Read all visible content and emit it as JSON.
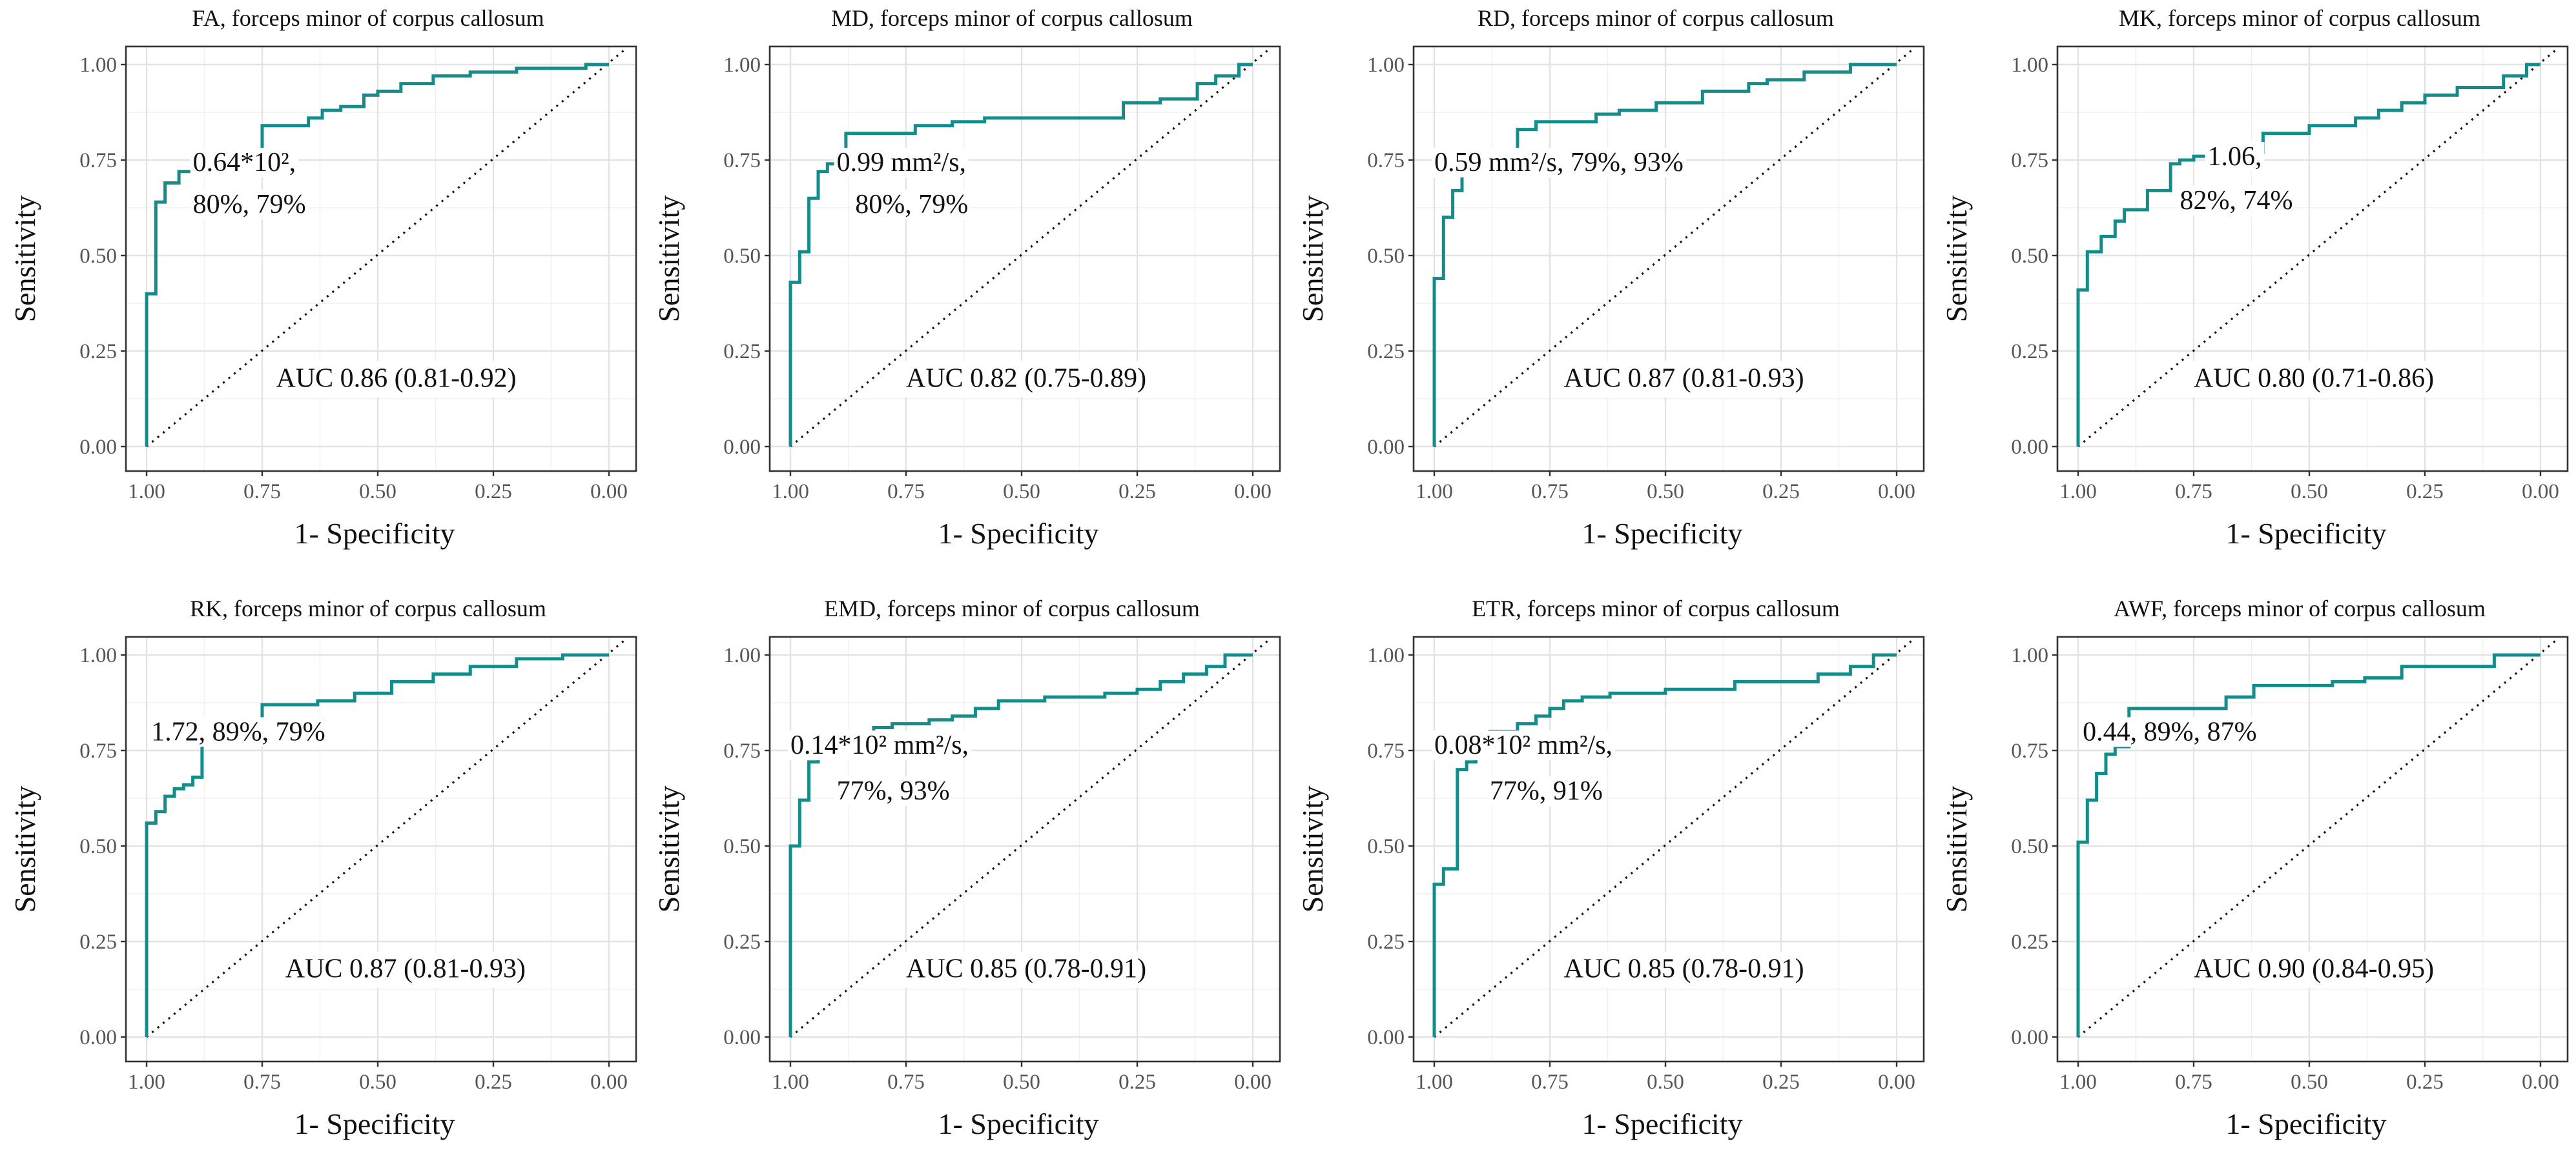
{
  "chart_data": [
    {
      "type": "line",
      "title": "FA, forceps minor of corpus callosum",
      "xlabel": "1- Specificity",
      "ylabel": "Sensitivity",
      "xlim": [
        1.0,
        0.0
      ],
      "ylim": [
        0.0,
        1.0
      ],
      "xticks": [
        "1.00",
        "0.75",
        "0.50",
        "0.25",
        "0.00"
      ],
      "yticks": [
        "0.00",
        "0.25",
        "0.50",
        "0.75",
        "1.00"
      ],
      "grid": true,
      "annotation": [
        "0.64*10²,",
        "80%, 79%"
      ],
      "auc_label": "AUC 0.86 (0.81-0.92)",
      "series": [
        {
          "name": "ROC",
          "x": [
            1.0,
            1.0,
            0.98,
            0.98,
            0.96,
            0.96,
            0.93,
            0.93,
            0.88,
            0.88,
            0.75,
            0.75,
            0.65,
            0.65,
            0.62,
            0.62,
            0.58,
            0.58,
            0.53,
            0.53,
            0.5,
            0.5,
            0.45,
            0.45,
            0.38,
            0.38,
            0.3,
            0.3,
            0.2,
            0.2,
            0.05,
            0.05,
            0.0
          ],
          "y": [
            0.0,
            0.4,
            0.4,
            0.64,
            0.64,
            0.69,
            0.69,
            0.72,
            0.72,
            0.74,
            0.74,
            0.84,
            0.84,
            0.86,
            0.86,
            0.88,
            0.88,
            0.89,
            0.89,
            0.92,
            0.92,
            0.93,
            0.93,
            0.95,
            0.95,
            0.97,
            0.97,
            0.98,
            0.98,
            0.99,
            0.99,
            1.0,
            1.0
          ]
        }
      ],
      "ann_pos": [
        0.9,
        0.745,
        0.9,
        0.635
      ],
      "auc_pos": [
        0.72,
        0.18
      ]
    },
    {
      "type": "line",
      "title": "MD, forceps minor of corpus callosum",
      "xlabel": "1- Specificity",
      "ylabel": "Sensitivity",
      "xlim": [
        1.0,
        0.0
      ],
      "ylim": [
        0.0,
        1.0
      ],
      "xticks": [
        "1.00",
        "0.75",
        "0.50",
        "0.25",
        "0.00"
      ],
      "yticks": [
        "0.00",
        "0.25",
        "0.50",
        "0.75",
        "1.00"
      ],
      "grid": true,
      "annotation": [
        "0.99 mm²/s,",
        "80%, 79%"
      ],
      "auc_label": "AUC 0.82 (0.75-0.89)",
      "series": [
        {
          "name": "ROC",
          "x": [
            1.0,
            1.0,
            0.98,
            0.98,
            0.96,
            0.96,
            0.94,
            0.94,
            0.92,
            0.92,
            0.88,
            0.88,
            0.73,
            0.73,
            0.65,
            0.65,
            0.58,
            0.58,
            0.28,
            0.28,
            0.2,
            0.2,
            0.12,
            0.12,
            0.08,
            0.08,
            0.03,
            0.03,
            0.0
          ],
          "y": [
            0.0,
            0.43,
            0.43,
            0.51,
            0.51,
            0.65,
            0.65,
            0.72,
            0.72,
            0.74,
            0.74,
            0.82,
            0.82,
            0.84,
            0.84,
            0.85,
            0.85,
            0.86,
            0.86,
            0.9,
            0.9,
            0.91,
            0.91,
            0.95,
            0.95,
            0.97,
            0.97,
            1.0,
            1.0
          ]
        }
      ],
      "ann_pos": [
        0.9,
        0.745,
        0.86,
        0.635
      ],
      "auc_pos": [
        0.75,
        0.18
      ]
    },
    {
      "type": "line",
      "title": "RD, forceps minor of corpus callosum",
      "xlabel": "1- Specificity",
      "ylabel": "Sensitivity",
      "xlim": [
        1.0,
        0.0
      ],
      "ylim": [
        0.0,
        1.0
      ],
      "xticks": [
        "1.00",
        "0.75",
        "0.50",
        "0.25",
        "0.00"
      ],
      "yticks": [
        "0.00",
        "0.25",
        "0.50",
        "0.75",
        "1.00"
      ],
      "grid": true,
      "annotation": [
        "0.59 mm²/s, 79%, 93%"
      ],
      "auc_label": "AUC 0.87 (0.81-0.93)",
      "series": [
        {
          "name": "ROC",
          "x": [
            1.0,
            1.0,
            0.98,
            0.98,
            0.96,
            0.96,
            0.94,
            0.94,
            0.82,
            0.82,
            0.78,
            0.78,
            0.65,
            0.65,
            0.6,
            0.6,
            0.52,
            0.52,
            0.42,
            0.42,
            0.32,
            0.32,
            0.28,
            0.28,
            0.2,
            0.2,
            0.1,
            0.1,
            0.0
          ],
          "y": [
            0.0,
            0.44,
            0.44,
            0.6,
            0.6,
            0.67,
            0.67,
            0.74,
            0.74,
            0.83,
            0.83,
            0.85,
            0.85,
            0.87,
            0.87,
            0.88,
            0.88,
            0.9,
            0.9,
            0.93,
            0.93,
            0.95,
            0.95,
            0.96,
            0.96,
            0.98,
            0.98,
            1.0,
            1.0
          ]
        }
      ],
      "ann_pos": [
        1.0,
        0.745
      ],
      "auc_pos": [
        0.72,
        0.18
      ]
    },
    {
      "type": "line",
      "title": "MK, forceps minor of corpus callosum",
      "xlabel": "1- Specificity",
      "ylabel": "Sensitivity",
      "xlim": [
        1.0,
        0.0
      ],
      "ylim": [
        0.0,
        1.0
      ],
      "xticks": [
        "1.00",
        "0.75",
        "0.50",
        "0.25",
        "0.00"
      ],
      "yticks": [
        "0.00",
        "0.25",
        "0.50",
        "0.75",
        "1.00"
      ],
      "grid": true,
      "annotation": [
        "1.06,",
        "82%, 74%"
      ],
      "auc_label": "AUC 0.80 (0.71-0.86)",
      "series": [
        {
          "name": "ROC",
          "x": [
            1.0,
            1.0,
            0.98,
            0.98,
            0.95,
            0.95,
            0.92,
            0.92,
            0.9,
            0.9,
            0.85,
            0.85,
            0.8,
            0.8,
            0.78,
            0.78,
            0.75,
            0.75,
            0.72,
            0.72,
            0.6,
            0.6,
            0.5,
            0.5,
            0.4,
            0.4,
            0.35,
            0.35,
            0.3,
            0.3,
            0.25,
            0.25,
            0.18,
            0.18,
            0.08,
            0.08,
            0.03,
            0.03,
            0.0
          ],
          "y": [
            0.0,
            0.41,
            0.41,
            0.51,
            0.51,
            0.55,
            0.55,
            0.59,
            0.59,
            0.62,
            0.62,
            0.67,
            0.67,
            0.74,
            0.74,
            0.75,
            0.75,
            0.76,
            0.76,
            0.77,
            0.77,
            0.82,
            0.82,
            0.84,
            0.84,
            0.86,
            0.86,
            0.88,
            0.88,
            0.9,
            0.9,
            0.92,
            0.92,
            0.94,
            0.94,
            0.97,
            0.97,
            1.0,
            1.0
          ]
        }
      ],
      "ann_pos": [
        0.72,
        0.76,
        0.78,
        0.645
      ],
      "auc_pos": [
        0.75,
        0.18
      ]
    },
    {
      "type": "line",
      "title": "RK, forceps minor of corpus callosum",
      "xlabel": "1- Specificity",
      "ylabel": "Sensitivity",
      "xlim": [
        1.0,
        0.0
      ],
      "ylim": [
        0.0,
        1.0
      ],
      "xticks": [
        "1.00",
        "0.75",
        "0.50",
        "0.25",
        "0.00"
      ],
      "yticks": [
        "0.00",
        "0.25",
        "0.50",
        "0.75",
        "1.00"
      ],
      "grid": true,
      "annotation": [
        "1.72, 89%, 79%"
      ],
      "auc_label": "AUC 0.87 (0.81-0.93)",
      "series": [
        {
          "name": "ROC",
          "x": [
            1.0,
            1.0,
            0.98,
            0.98,
            0.96,
            0.96,
            0.94,
            0.94,
            0.92,
            0.92,
            0.9,
            0.9,
            0.88,
            0.88,
            0.75,
            0.75,
            0.63,
            0.63,
            0.55,
            0.55,
            0.47,
            0.47,
            0.38,
            0.38,
            0.3,
            0.3,
            0.2,
            0.2,
            0.1,
            0.1,
            0.0
          ],
          "y": [
            0.0,
            0.56,
            0.56,
            0.59,
            0.59,
            0.63,
            0.63,
            0.65,
            0.65,
            0.66,
            0.66,
            0.68,
            0.68,
            0.79,
            0.79,
            0.87,
            0.87,
            0.88,
            0.88,
            0.9,
            0.9,
            0.93,
            0.93,
            0.95,
            0.95,
            0.97,
            0.97,
            0.99,
            0.99,
            1.0,
            1.0
          ]
        }
      ],
      "ann_pos": [
        0.99,
        0.8
      ],
      "auc_pos": [
        0.7,
        0.18
      ]
    },
    {
      "type": "line",
      "title": "EMD, forceps minor of corpus callosum",
      "xlabel": "1- Specificity",
      "ylabel": "Sensitivity",
      "xlim": [
        1.0,
        0.0
      ],
      "ylim": [
        0.0,
        1.0
      ],
      "xticks": [
        "1.00",
        "0.75",
        "0.50",
        "0.25",
        "0.00"
      ],
      "yticks": [
        "0.00",
        "0.25",
        "0.50",
        "0.75",
        "1.00"
      ],
      "grid": true,
      "annotation": [
        "0.14*10² mm²/s,",
        "77%, 93%"
      ],
      "auc_label": "AUC 0.85 (0.78-0.91)",
      "series": [
        {
          "name": "ROC",
          "x": [
            1.0,
            1.0,
            0.98,
            0.98,
            0.96,
            0.96,
            0.94,
            0.94,
            0.82,
            0.82,
            0.78,
            0.78,
            0.7,
            0.7,
            0.65,
            0.65,
            0.6,
            0.6,
            0.55,
            0.55,
            0.45,
            0.45,
            0.32,
            0.32,
            0.25,
            0.25,
            0.2,
            0.2,
            0.15,
            0.15,
            0.1,
            0.1,
            0.06,
            0.06,
            0.0
          ],
          "y": [
            0.0,
            0.5,
            0.5,
            0.62,
            0.62,
            0.72,
            0.72,
            0.74,
            0.74,
            0.81,
            0.81,
            0.82,
            0.82,
            0.83,
            0.83,
            0.84,
            0.84,
            0.86,
            0.86,
            0.88,
            0.88,
            0.89,
            0.89,
            0.9,
            0.9,
            0.91,
            0.91,
            0.93,
            0.93,
            0.95,
            0.95,
            0.97,
            0.97,
            1.0,
            1.0
          ]
        }
      ],
      "ann_pos": [
        1.0,
        0.765,
        0.9,
        0.645
      ],
      "auc_pos": [
        0.75,
        0.18
      ]
    },
    {
      "type": "line",
      "title": "ETR, forceps minor of corpus callosum",
      "xlabel": "1- Specificity",
      "ylabel": "Sensitivity",
      "xlim": [
        1.0,
        0.0
      ],
      "ylim": [
        0.0,
        1.0
      ],
      "xticks": [
        "1.00",
        "0.75",
        "0.50",
        "0.25",
        "0.00"
      ],
      "yticks": [
        "0.00",
        "0.25",
        "0.50",
        "0.75",
        "1.00"
      ],
      "grid": true,
      "annotation": [
        "0.08*10² mm²/s,",
        "77%, 91%"
      ],
      "auc_label": "AUC 0.85 (0.78-0.91)",
      "series": [
        {
          "name": "ROC",
          "x": [
            1.0,
            1.0,
            0.98,
            0.98,
            0.95,
            0.95,
            0.93,
            0.93,
            0.91,
            0.91,
            0.88,
            0.88,
            0.82,
            0.82,
            0.78,
            0.78,
            0.75,
            0.75,
            0.72,
            0.72,
            0.68,
            0.68,
            0.62,
            0.62,
            0.5,
            0.5,
            0.35,
            0.35,
            0.17,
            0.17,
            0.1,
            0.1,
            0.05,
            0.05,
            0.0
          ],
          "y": [
            0.0,
            0.4,
            0.4,
            0.44,
            0.44,
            0.7,
            0.7,
            0.72,
            0.72,
            0.74,
            0.74,
            0.8,
            0.8,
            0.82,
            0.82,
            0.84,
            0.84,
            0.86,
            0.86,
            0.88,
            0.88,
            0.89,
            0.89,
            0.9,
            0.9,
            0.91,
            0.91,
            0.93,
            0.93,
            0.95,
            0.95,
            0.97,
            0.97,
            1.0,
            1.0
          ]
        }
      ],
      "ann_pos": [
        1.0,
        0.765,
        0.88,
        0.645
      ],
      "auc_pos": [
        0.72,
        0.18
      ]
    },
    {
      "type": "line",
      "title": "AWF, forceps minor of corpus callosum",
      "xlabel": "1- Specificity",
      "ylabel": "Sensitivity",
      "xlim": [
        1.0,
        0.0
      ],
      "ylim": [
        0.0,
        1.0
      ],
      "xticks": [
        "1.00",
        "0.75",
        "0.50",
        "0.25",
        "0.00"
      ],
      "yticks": [
        "0.00",
        "0.25",
        "0.50",
        "0.75",
        "1.00"
      ],
      "grid": true,
      "annotation": [
        "0.44, 89%, 87%"
      ],
      "auc_label": "AUC 0.90 (0.84-0.95)",
      "series": [
        {
          "name": "ROC",
          "x": [
            1.0,
            1.0,
            0.98,
            0.98,
            0.96,
            0.96,
            0.94,
            0.94,
            0.92,
            0.92,
            0.89,
            0.89,
            0.68,
            0.68,
            0.62,
            0.62,
            0.45,
            0.45,
            0.38,
            0.38,
            0.3,
            0.3,
            0.1,
            0.1,
            0.0
          ],
          "y": [
            0.0,
            0.51,
            0.51,
            0.62,
            0.62,
            0.69,
            0.69,
            0.74,
            0.74,
            0.76,
            0.76,
            0.86,
            0.86,
            0.89,
            0.89,
            0.92,
            0.92,
            0.93,
            0.93,
            0.94,
            0.94,
            0.97,
            0.97,
            1.0,
            1.0
          ]
        }
      ],
      "ann_pos": [
        0.99,
        0.8
      ],
      "auc_pos": [
        0.75,
        0.18
      ]
    }
  ]
}
